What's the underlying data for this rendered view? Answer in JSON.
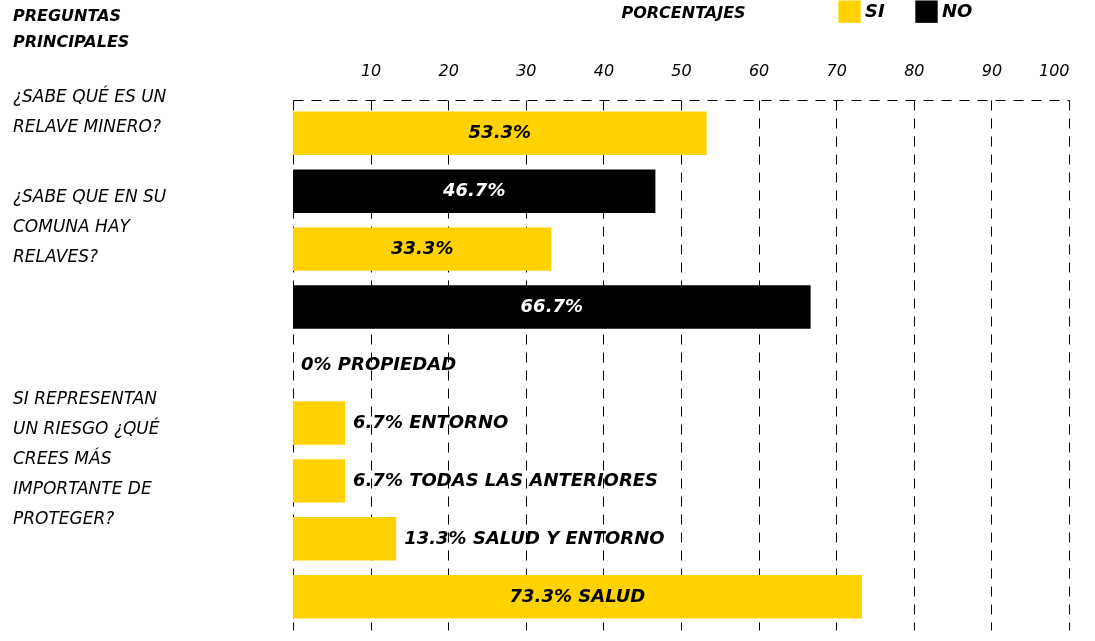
{
  "chart_data": {
    "type": "bar",
    "orientation": "horizontal",
    "xlabel": "PORCENTAJES",
    "ylabel": "PREGUNTAS PRINCIPALES",
    "categories": [
      "¿SABE QUÉ ES UN RELAVE MINERO?",
      null,
      "¿SABE QUE EN SU COMUNA HAY RELAVES?",
      null,
      null,
      null,
      "SI REPRESENTAN UN RIESGO ¿QUÉ CREES MÁS IMPORTANTE DE PROTEGER?",
      null,
      null
    ],
    "series": [
      {
        "name": "SI",
        "color": "#ffd200",
        "values": [
          53.3,
          null,
          33.3,
          null,
          0,
          6.7,
          6.7,
          13.3,
          73.3
        ],
        "value_labels": [
          "53.3%",
          null,
          "33.3%",
          null,
          "0% PROPIEDAD",
          "6.7% ENTORNO",
          "6.7% TODAS LAS ANTERIORES",
          "13.3% SALUD Y ENTORNO",
          "73.3% SALUD"
        ]
      },
      {
        "name": "NO",
        "color": "#000000",
        "values": [
          null,
          46.7,
          null,
          66.7,
          null,
          null,
          null,
          null,
          null
        ],
        "value_labels": [
          null,
          "46.7%",
          null,
          "66.7%",
          null,
          null,
          null,
          null,
          null
        ]
      }
    ],
    "xlim": [
      0,
      100
    ],
    "xticks": [
      {
        "value": 0,
        "label": null
      },
      10,
      20,
      30,
      40,
      50,
      60,
      70,
      80,
      90,
      100
    ],
    "grid": "x",
    "legend": "top right"
  }
}
